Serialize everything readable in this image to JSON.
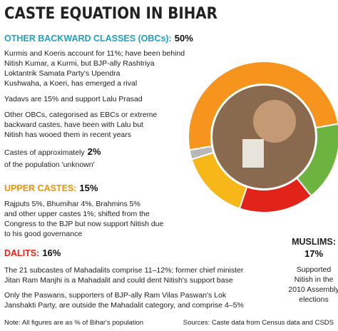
{
  "title": "CASTE EQUATION IN BIHAR",
  "chart_data": {
    "type": "donut",
    "categories": [
      "OTHER BACKWARD CLASSES (OBCs):",
      "MUSLIMS:",
      "DALITS:",
      "UPPER CASTES:",
      null
    ],
    "values": [
      50,
      17,
      16,
      15,
      2
    ],
    "value_labels": [
      "50%",
      "17%",
      "16%",
      "15%",
      "2%"
    ],
    "colors": [
      "#f7941d",
      "#6db33f",
      "#e2231a",
      "#f7b718",
      "#b7b7b7"
    ]
  },
  "obc_lines": [
    "Kurmis and Koeris account for 11%; have been behind",
    "Nitish Kumar, a Kurmi, but BJP-ally Rashtriya",
    "Loktantrik Samata Party's Upendra",
    "Kushwaha, a Koeri, has emerged a rival",
    "Yadavs are 15% and support Lalu Prasad",
    "Other OBCs, categorised as EBCs or extreme",
    "backward castes, have been with Lalu but",
    "Nitish has wooed them in recent years"
  ],
  "unknown_lines": [
    "Castes of approximately",
    "of the population 'unknown'"
  ],
  "upper_lines": [
    "Rajputs 5%, Bhumihar 4%, Brahmins 5%",
    "and other upper castes 1%; shifted from the",
    "Congress to the BJP but now support Nitish due",
    "to his good governance"
  ],
  "dalit_lines": [
    "The 21 subcastes of Mahadalits comprise 11–12%; former chief minister",
    "Jitan Ram Manjhi is a Mahadalit and could dent Nitish's support base",
    "Only the Paswans, supporters of BJP-ally Ram Vilas Paswan's Lok",
    "Janshakti Party, are outside the Mahadalit category, and comprise 4–5%"
  ],
  "muslim_lines": [
    "Supported",
    "Nitish in the",
    "2010 Assembly",
    "elections"
  ],
  "footer": {
    "note": "Note: All figures are as % of Bihar's population",
    "source": "Sources: Caste data from Census data and CSDS"
  }
}
